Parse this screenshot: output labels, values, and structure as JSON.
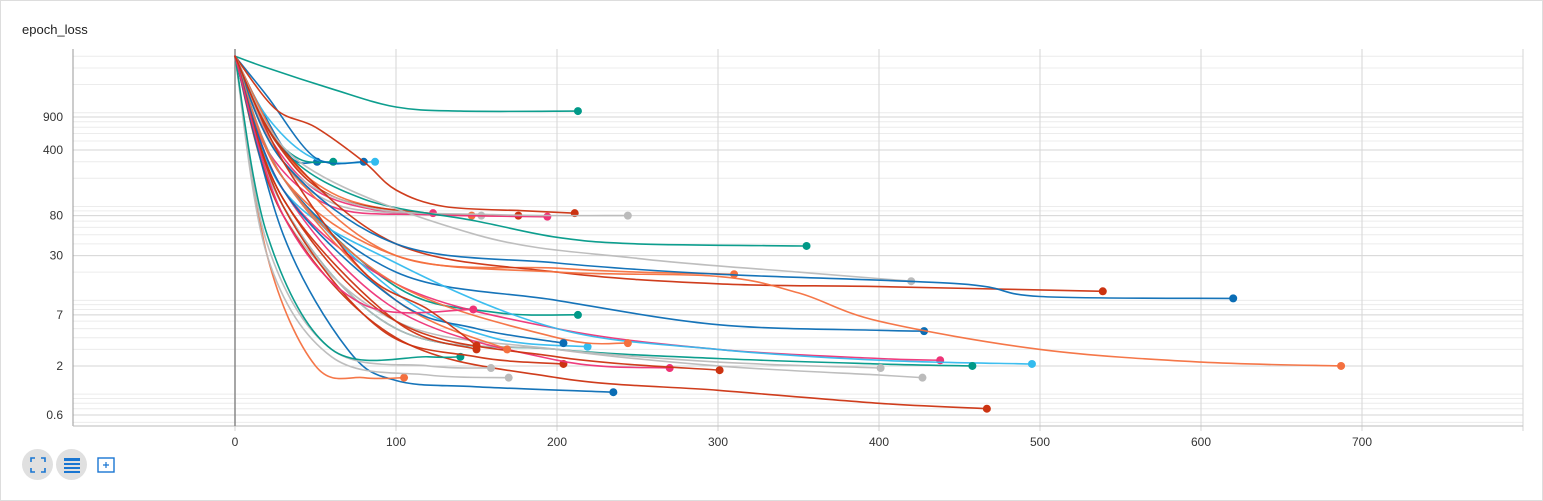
{
  "chart_title": "epoch_loss",
  "colors": {
    "orange": "#f4703f",
    "blue": "#0a6db5",
    "teal": "#009988",
    "red": "#cc3311",
    "pink": "#ee3377",
    "gray": "#bbbbbb",
    "cyan": "#33bbee"
  },
  "toolbar": {
    "buttons": [
      {
        "name": "fit-to-data",
        "icon": "expand-icon",
        "active": true
      },
      {
        "name": "toggle-log-scale",
        "icon": "list-lines-icon",
        "active": true
      },
      {
        "name": "reset-view",
        "icon": "frame-select-icon",
        "active": false
      }
    ]
  },
  "chart_data": {
    "type": "line",
    "title": "epoch_loss",
    "xlabel": "",
    "ylabel": "",
    "xlim": [
      -100,
      800
    ],
    "ylim": [
      0.4,
      4000
    ],
    "y_scale": "log",
    "x_ticks": [
      0,
      100,
      200,
      300,
      400,
      500,
      600,
      700
    ],
    "y_ticks": [
      0.6,
      2,
      7,
      30,
      80,
      400,
      900
    ],
    "y_tick_labels": [
      "0.6",
      "2",
      "7",
      "30",
      "80",
      "400",
      "900"
    ],
    "grid": true,
    "legend": "none",
    "series": [
      {
        "color": "teal",
        "x": [
          0,
          20,
          60,
          100,
          140,
          213
        ],
        "y": [
          4000,
          3000,
          1800,
          1150,
          1040,
          1040
        ]
      },
      {
        "color": "blue",
        "x": [
          0,
          15,
          35,
          51
        ],
        "y": [
          4000,
          1200,
          330,
          300
        ]
      },
      {
        "color": "cyan",
        "x": [
          0,
          20,
          50,
          87
        ],
        "y": [
          4000,
          900,
          320,
          300
        ]
      },
      {
        "color": "teal",
        "x": [
          0,
          20,
          40,
          61
        ],
        "y": [
          4000,
          700,
          320,
          300
        ]
      },
      {
        "color": "blue",
        "x": [
          0,
          20,
          50,
          80
        ],
        "y": [
          4000,
          1500,
          330,
          300
        ]
      },
      {
        "color": "red",
        "x": [
          0,
          25,
          50,
          80,
          100,
          130,
          180,
          211
        ],
        "y": [
          4000,
          1100,
          700,
          300,
          150,
          100,
          90,
          85
        ]
      },
      {
        "color": "pink",
        "x": [
          0,
          20,
          50,
          90,
          123
        ],
        "y": [
          4000,
          600,
          150,
          90,
          85
        ]
      },
      {
        "color": "orange",
        "x": [
          0,
          30,
          60,
          100,
          147
        ],
        "y": [
          4000,
          400,
          140,
          90,
          80
        ]
      },
      {
        "color": "gray",
        "x": [
          0,
          30,
          60,
          100,
          153
        ],
        "y": [
          4000,
          300,
          110,
          85,
          80
        ]
      },
      {
        "color": "red",
        "x": [
          0,
          25,
          60,
          120,
          176
        ],
        "y": [
          4000,
          500,
          130,
          85,
          80
        ]
      },
      {
        "color": "pink",
        "x": [
          0,
          20,
          60,
          120,
          194
        ],
        "y": [
          4000,
          400,
          100,
          82,
          78
        ]
      },
      {
        "color": "gray",
        "x": [
          0,
          30,
          80,
          160,
          244
        ],
        "y": [
          4000,
          300,
          100,
          82,
          80
        ]
      },
      {
        "color": "teal",
        "x": [
          0,
          30,
          80,
          150,
          200,
          250,
          355
        ],
        "y": [
          4000,
          400,
          120,
          70,
          47,
          40,
          38
        ]
      },
      {
        "color": "orange",
        "x": [
          0,
          30,
          100,
          200,
          250,
          310
        ],
        "y": [
          4000,
          300,
          30,
          22,
          20,
          19
        ]
      },
      {
        "color": "gray",
        "x": [
          0,
          40,
          150,
          250,
          350,
          420
        ],
        "y": [
          4000,
          300,
          50,
          28,
          20,
          16
        ]
      },
      {
        "color": "red",
        "x": [
          0,
          30,
          100,
          200,
          300,
          400,
          539
        ],
        "y": [
          4000,
          400,
          40,
          20,
          15,
          14,
          12.5
        ]
      },
      {
        "color": "blue",
        "x": [
          0,
          30,
          100,
          200,
          300,
          450,
          500,
          620
        ],
        "y": [
          4000,
          300,
          40,
          25,
          19,
          15,
          11,
          10.5
        ]
      },
      {
        "color": "teal",
        "x": [
          0,
          30,
          100,
          160,
          213
        ],
        "y": [
          4000,
          200,
          14,
          7.5,
          7
        ]
      },
      {
        "color": "blue",
        "x": [
          0,
          30,
          100,
          200,
          300,
          400,
          428
        ],
        "y": [
          4000,
          200,
          20,
          10,
          5.5,
          4.8,
          4.7
        ]
      },
      {
        "color": "pink",
        "x": [
          0,
          30,
          100,
          200,
          300,
          400,
          438
        ],
        "y": [
          4000,
          150,
          15,
          5,
          3,
          2.4,
          2.3
        ]
      },
      {
        "color": "cyan",
        "x": [
          0,
          30,
          100,
          200,
          300,
          400,
          495
        ],
        "y": [
          4000,
          150,
          25,
          5,
          3,
          2.3,
          2.1
        ]
      },
      {
        "color": "orange",
        "x": [
          0,
          30,
          100,
          200,
          300,
          350,
          400,
          500,
          600,
          687
        ],
        "y": [
          4000,
          200,
          30,
          20,
          18,
          12,
          6,
          3,
          2.2,
          2
        ]
      },
      {
        "color": "teal",
        "x": [
          0,
          30,
          100,
          200,
          300,
          400,
          458
        ],
        "y": [
          4000,
          100,
          5,
          3,
          2.4,
          2.1,
          2
        ]
      },
      {
        "color": "gray",
        "x": [
          0,
          30,
          100,
          200,
          300,
          400,
          427
        ],
        "y": [
          4000,
          80,
          6,
          3,
          2,
          1.6,
          1.5
        ]
      },
      {
        "color": "gray",
        "x": [
          0,
          30,
          100,
          200,
          300,
          401
        ],
        "y": [
          4000,
          100,
          5,
          3,
          2.2,
          1.9
        ]
      },
      {
        "color": "red",
        "x": [
          0,
          30,
          100,
          200,
          300,
          400,
          467
        ],
        "y": [
          4000,
          80,
          4,
          1.5,
          1.1,
          0.8,
          0.7
        ]
      },
      {
        "color": "blue",
        "x": [
          0,
          30,
          70,
          100,
          150,
          235
        ],
        "y": [
          4000,
          50,
          3,
          1.4,
          1.2,
          1.05
        ]
      },
      {
        "color": "orange",
        "x": [
          0,
          20,
          50,
          80,
          105
        ],
        "y": [
          4000,
          30,
          2,
          1.5,
          1.5
        ]
      },
      {
        "color": "gray",
        "x": [
          0,
          20,
          60,
          120,
          170
        ],
        "y": [
          4000,
          30,
          2.5,
          1.6,
          1.5
        ]
      },
      {
        "color": "gray",
        "x": [
          0,
          20,
          60,
          120,
          159
        ],
        "y": [
          4000,
          40,
          3,
          2,
          1.9
        ]
      },
      {
        "color": "teal",
        "x": [
          0,
          20,
          60,
          120,
          140
        ],
        "y": [
          4000,
          50,
          3,
          2.5,
          2.5
        ]
      },
      {
        "color": "red",
        "x": [
          0,
          30,
          90,
          150,
          204
        ],
        "y": [
          4000,
          100,
          5,
          2.5,
          2.1
        ]
      },
      {
        "color": "pink",
        "x": [
          0,
          30,
          100,
          200,
          270
        ],
        "y": [
          4000,
          150,
          8,
          2.3,
          1.9
        ]
      },
      {
        "color": "red",
        "x": [
          0,
          30,
          100,
          200,
          301
        ],
        "y": [
          4000,
          120,
          6,
          2.5,
          1.8
        ]
      },
      {
        "color": "orange",
        "x": [
          0,
          30,
          100,
          169
        ],
        "y": [
          4000,
          200,
          10,
          3
        ]
      },
      {
        "color": "cyan",
        "x": [
          0,
          30,
          100,
          160,
          219
        ],
        "y": [
          4000,
          200,
          12,
          4,
          3.2
        ]
      },
      {
        "color": "orange",
        "x": [
          0,
          30,
          100,
          200,
          244
        ],
        "y": [
          4000,
          200,
          15,
          4,
          3.5
        ]
      },
      {
        "color": "blue",
        "x": [
          0,
          30,
          100,
          150,
          204
        ],
        "y": [
          4000,
          150,
          10,
          5,
          3.5
        ]
      },
      {
        "color": "red",
        "x": [
          0,
          30,
          100,
          150
        ],
        "y": [
          4000,
          120,
          6,
          3
        ]
      },
      {
        "color": "pink",
        "x": [
          0,
          30,
          80,
          148
        ],
        "y": [
          4000,
          80,
          9,
          8
        ]
      },
      {
        "color": "red",
        "x": [
          0,
          30,
          80,
          120,
          150
        ],
        "y": [
          4000,
          300,
          20,
          8,
          3.3
        ]
      }
    ]
  }
}
